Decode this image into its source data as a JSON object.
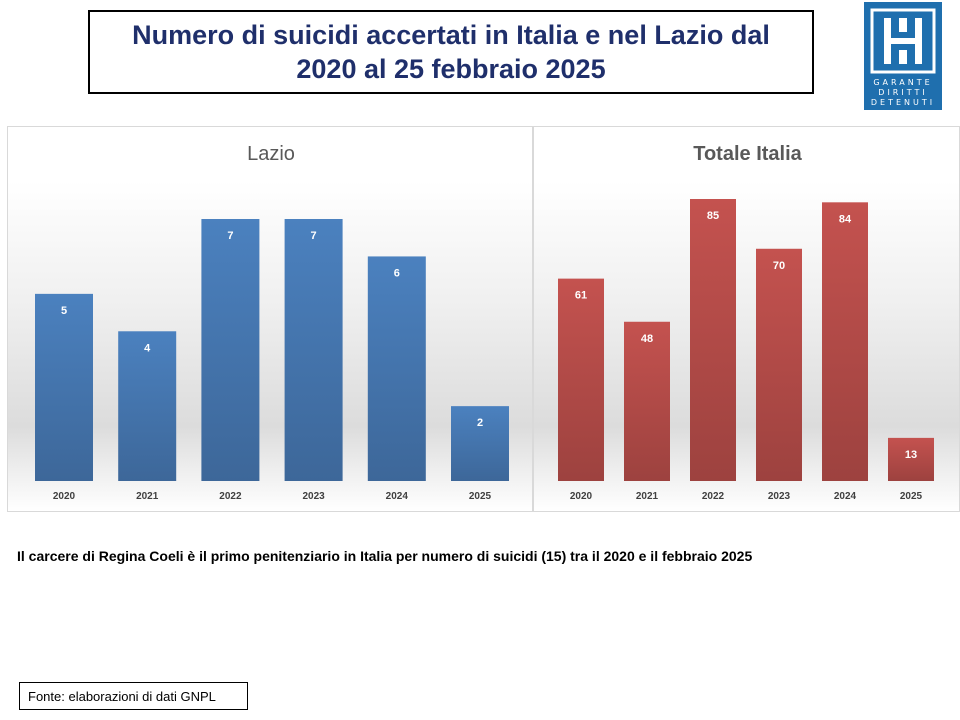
{
  "header": {
    "title": "Numero di suicidi accertati in Italia e nel Lazio dal\n2020 al 25 febbraio 2025"
  },
  "logo": {
    "icon": "garante-logo-icon",
    "lines": [
      "GARANTE",
      "DIRITTI",
      "DETENUTI"
    ],
    "color": "#1f6fae"
  },
  "chart_data": [
    {
      "type": "bar",
      "title": "Lazio",
      "categories": [
        "2020",
        "2021",
        "2022",
        "2023",
        "2024",
        "2025"
      ],
      "values": [
        5,
        4,
        7,
        7,
        6,
        2
      ],
      "data_labels": true,
      "xlabel": "",
      "ylabel": "",
      "ylim": [
        0,
        7
      ],
      "grid": false,
      "color": "#4a7ebb"
    },
    {
      "type": "bar",
      "title": "Totale Italia",
      "categories": [
        "2020",
        "2021",
        "2022",
        "2023",
        "2024",
        "2025"
      ],
      "values": [
        61,
        48,
        85,
        70,
        84,
        13
      ],
      "data_labels": true,
      "xlabel": "",
      "ylabel": "",
      "ylim": [
        0,
        85
      ],
      "grid": false,
      "color": "#c0504d"
    }
  ],
  "note": "Il carcere di Regina Coeli è il primo penitenziario in Italia per numero di suicidi (15) tra il 2020  e il febbraio 2025",
  "source": "Fonte: elaborazioni di dati GNPL"
}
